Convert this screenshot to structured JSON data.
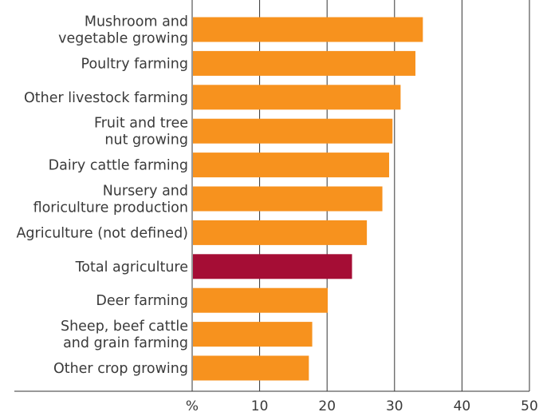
{
  "chart_data": {
    "type": "bar",
    "orientation": "horizontal",
    "categories": [
      [
        "Mushroom and",
        "vegetable growing"
      ],
      [
        "Poultry farming"
      ],
      [
        "Other livestock farming"
      ],
      [
        "Fruit and tree",
        "nut growing"
      ],
      [
        "Dairy cattle farming"
      ],
      [
        "Nursery and",
        "floriculture production"
      ],
      [
        "Agriculture (not defined)"
      ],
      [
        "Total agriculture"
      ],
      [
        "Deer farming"
      ],
      [
        "Sheep, beef cattle",
        "and grain farming"
      ],
      [
        "Other crop growing"
      ]
    ],
    "values": [
      34.2,
      33.1,
      30.9,
      29.7,
      29.2,
      28.2,
      25.9,
      23.7,
      20.1,
      17.8,
      17.3
    ],
    "highlight_index": 7,
    "colors": {
      "default": "#f7921e",
      "highlight": "#a50d35"
    },
    "xlim": [
      0,
      50
    ],
    "xticks": [
      10,
      20,
      30,
      40,
      50
    ],
    "x_unit_label": "%",
    "grid": true
  }
}
